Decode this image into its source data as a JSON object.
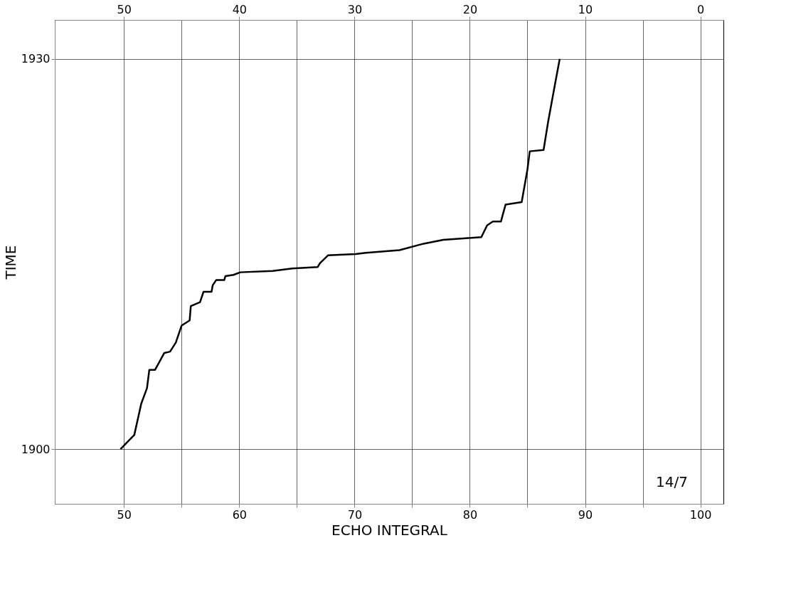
{
  "chart_data": {
    "type": "line",
    "xlabel": "ECHO INTEGRAL",
    "ylabel": "TIME",
    "annotations": [
      "14/7"
    ],
    "x": [
      49.7,
      50.9,
      51.5,
      52.0,
      52.2,
      52.7,
      53.5,
      54.0,
      54.5,
      55.0,
      55.7,
      55.8,
      56.6,
      56.9,
      57.6,
      57.7,
      58.0,
      58.7,
      58.8,
      59.5,
      60.1,
      62.9,
      64.6,
      66.8,
      67.0,
      67.7,
      70.1,
      71.0,
      73.9,
      76.0,
      77.7,
      81.0,
      81.5,
      82.0,
      82.7,
      83.1,
      84.5,
      85.0,
      85.2,
      86.4,
      86.8,
      87.4,
      87.8
    ],
    "series": [
      {
        "color": "#000000",
        "values": [
          1900.0,
          1901.1,
          1903.5,
          1904.7,
          1906.1,
          1906.1,
          1907.4,
          1907.5,
          1908.2,
          1909.5,
          1909.9,
          1911.0,
          1911.3,
          1912.1,
          1912.1,
          1912.6,
          1913.0,
          1913.0,
          1913.3,
          1913.4,
          1913.6,
          1913.7,
          1913.9,
          1914.0,
          1914.3,
          1914.9,
          1915.0,
          1915.1,
          1915.3,
          1915.8,
          1916.1,
          1916.3,
          1917.2,
          1917.5,
          1917.5,
          1918.8,
          1919.0,
          1921.5,
          1922.9,
          1923.0,
          1925.2,
          1928.1,
          1930.0
        ]
      }
    ],
    "xlim": [
      44,
      102
    ],
    "xticks": [
      50,
      {
        "value": 55,
        "label": null
      },
      60,
      {
        "value": 65,
        "label": null
      },
      70,
      {
        "value": 75,
        "label": null
      },
      80,
      {
        "value": 85,
        "label": null
      },
      90,
      {
        "value": 95,
        "label": null
      },
      100
    ],
    "x2lim": [
      56,
      -2
    ],
    "x2ticks": [
      50,
      40,
      30,
      20,
      10,
      0
    ],
    "ylim": [
      1895.8,
      1933.0
    ],
    "yticks": [
      1900,
      1930
    ],
    "grid": true,
    "legend": false,
    "marker": "none",
    "line_style": "solid"
  }
}
